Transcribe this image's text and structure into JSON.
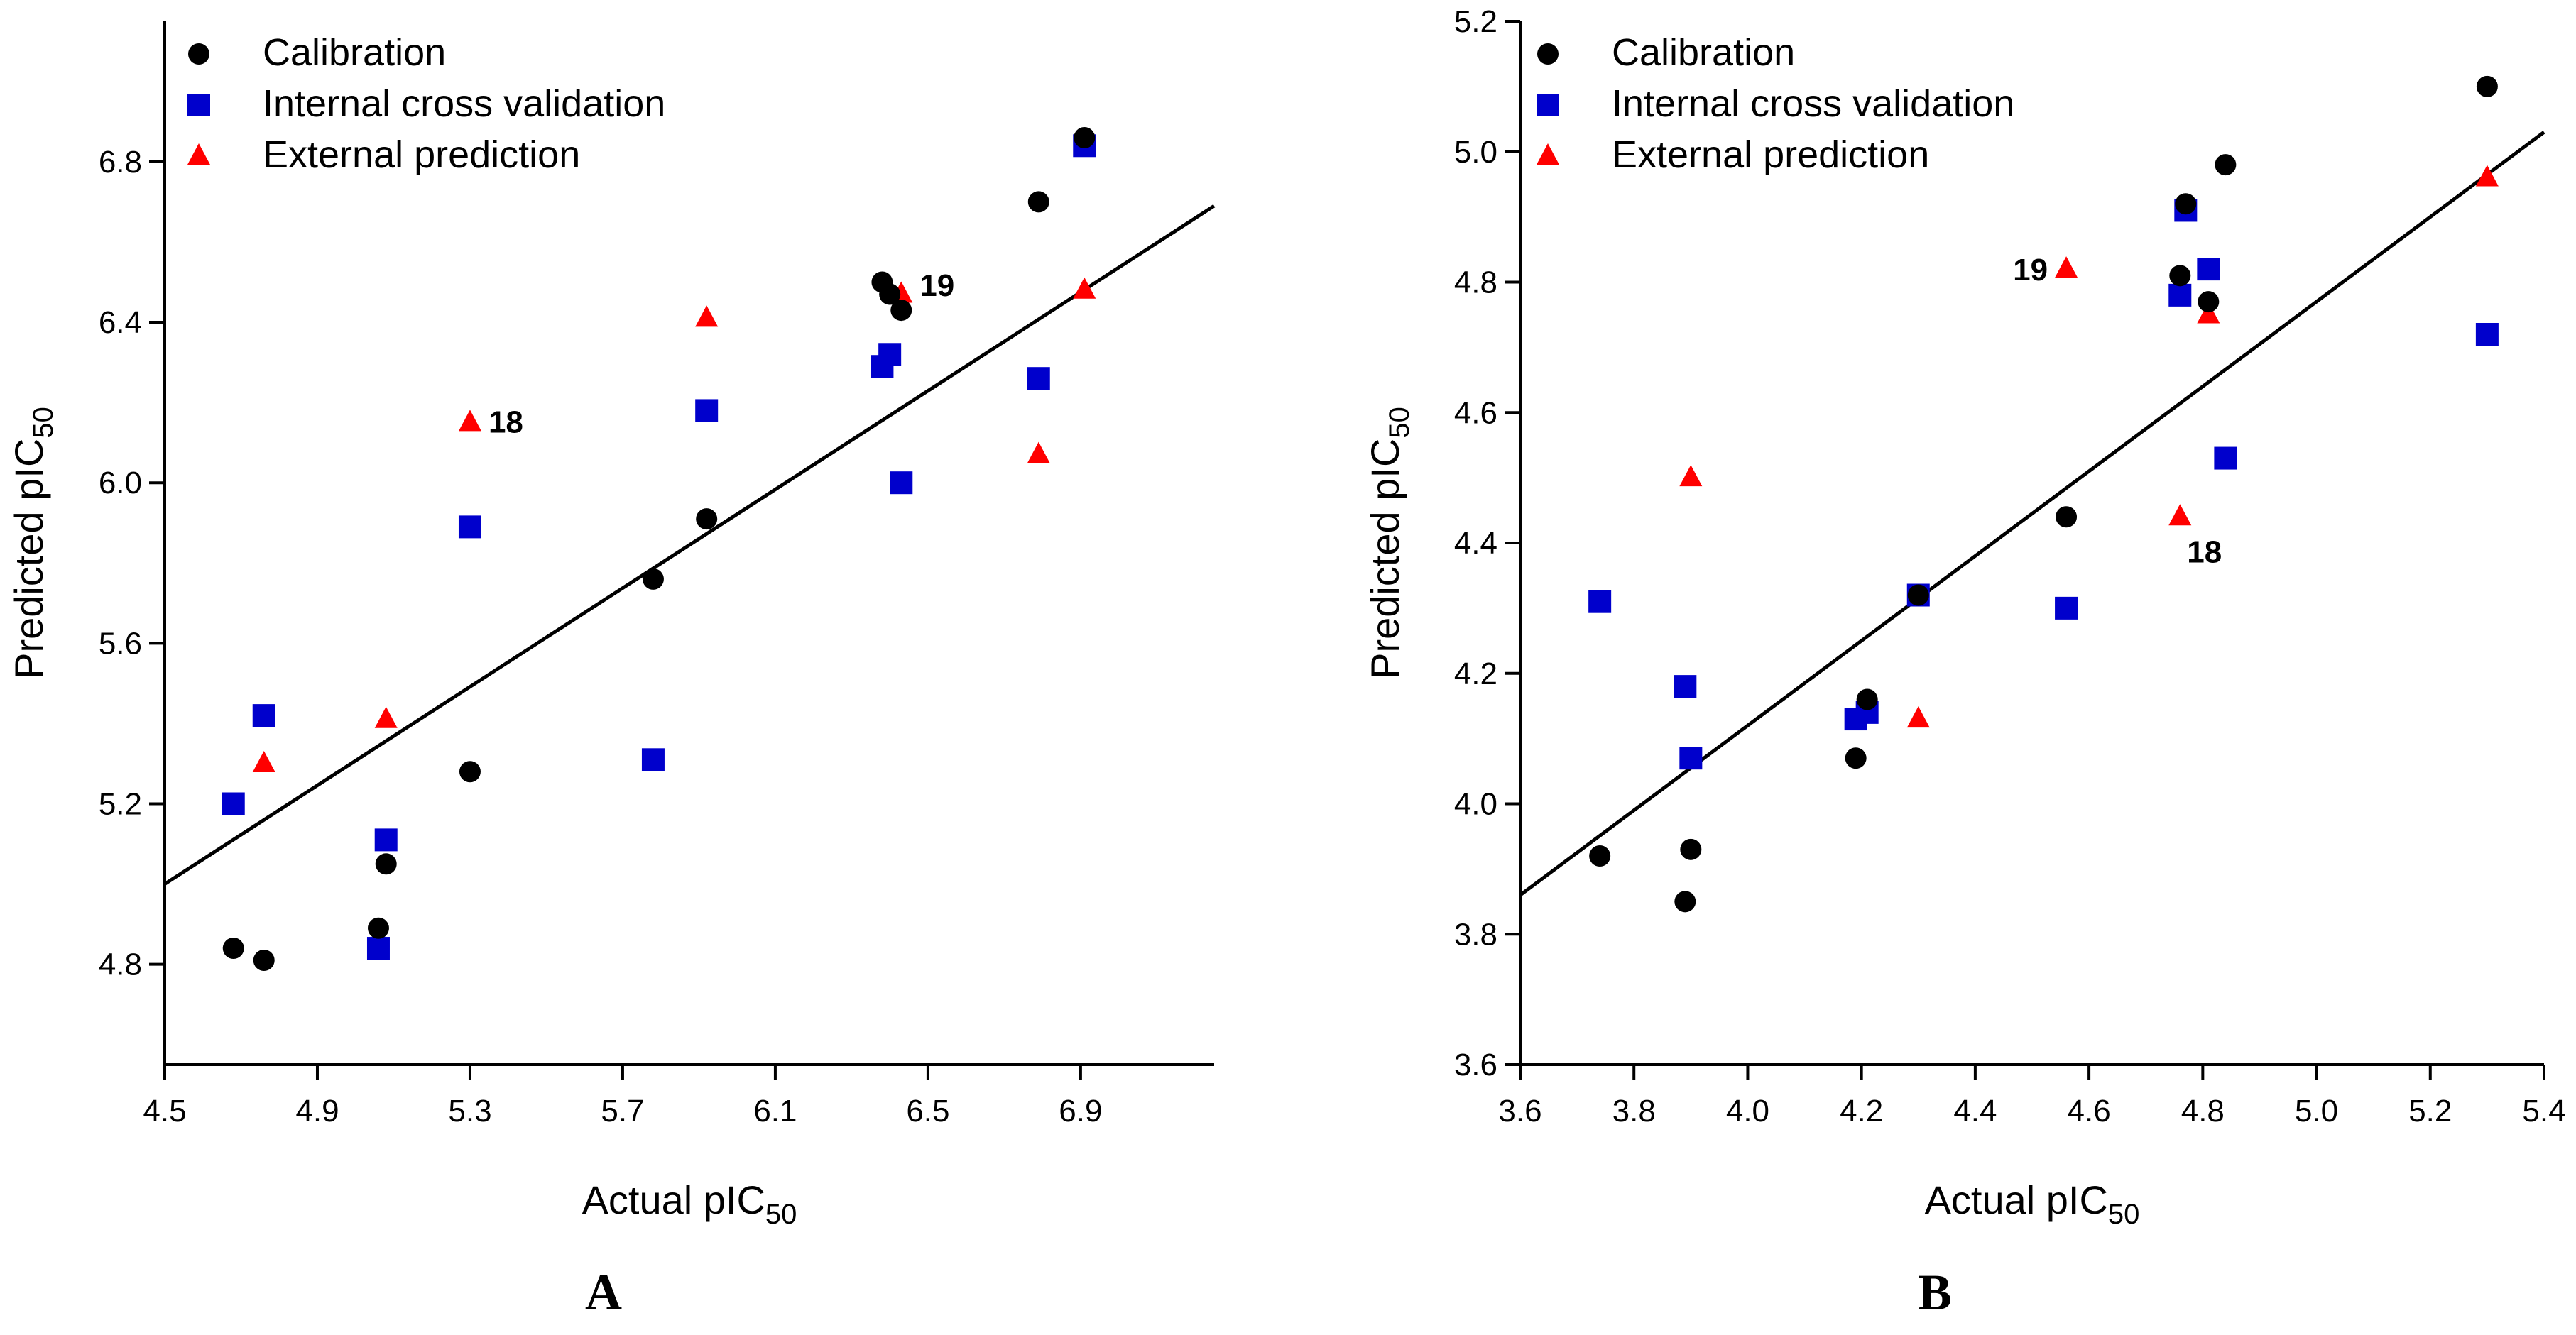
{
  "colors": {
    "calibration": "#000000",
    "internal": "#0000cc",
    "external": "#ff0000",
    "fit_line": "#000000"
  },
  "chart_data": [
    {
      "type": "scatter",
      "panel": "A",
      "xlabel": "Actual pIC",
      "xlabel_sub": "50",
      "ylabel": "Predicted pIC",
      "ylabel_sub": "50",
      "xlim": [
        4.5,
        7.25
      ],
      "ylim": [
        4.55,
        7.15
      ],
      "xticks": [
        4.5,
        4.9,
        5.3,
        5.7,
        6.1,
        6.5,
        6.9
      ],
      "yticks": [
        4.8,
        5.2,
        5.6,
        6.0,
        6.4,
        6.8
      ],
      "x_decimals": 1,
      "y_decimals": 1,
      "legend": [
        "Calibration",
        "Internal cross validation",
        "External prediction"
      ],
      "series": [
        {
          "name": "Calibration",
          "marker": "circle",
          "points": [
            [
              4.68,
              4.84
            ],
            [
              4.76,
              4.81
            ],
            [
              5.06,
              4.89
            ],
            [
              5.08,
              5.05
            ],
            [
              5.3,
              5.28
            ],
            [
              5.78,
              5.76
            ],
            [
              5.92,
              5.91
            ],
            [
              6.38,
              6.5
            ],
            [
              6.4,
              6.47
            ],
            [
              6.43,
              6.43
            ],
            [
              6.79,
              6.7
            ],
            [
              6.91,
              6.86
            ]
          ]
        },
        {
          "name": "Internal cross validation",
          "marker": "square",
          "points": [
            [
              4.68,
              5.2
            ],
            [
              4.76,
              5.42
            ],
            [
              5.06,
              4.84
            ],
            [
              5.08,
              5.11
            ],
            [
              5.3,
              5.89
            ],
            [
              5.78,
              5.31
            ],
            [
              5.92,
              6.18
            ],
            [
              6.38,
              6.29
            ],
            [
              6.4,
              6.32
            ],
            [
              6.43,
              6.0
            ],
            [
              6.79,
              6.26
            ],
            [
              6.91,
              6.84
            ]
          ]
        },
        {
          "name": "External prediction",
          "marker": "triangle",
          "points": [
            [
              4.76,
              5.3
            ],
            [
              5.08,
              5.41
            ],
            [
              5.3,
              6.15
            ],
            [
              5.92,
              6.41
            ],
            [
              6.43,
              6.47
            ],
            [
              6.79,
              6.07
            ],
            [
              6.91,
              6.48
            ]
          ]
        }
      ],
      "fit_line": [
        [
          4.5,
          5.0
        ],
        [
          7.25,
          6.69
        ]
      ],
      "annotations": [
        {
          "text": "18",
          "x": 5.3,
          "y": 6.15,
          "pos": "right"
        },
        {
          "text": "19",
          "x": 6.43,
          "y": 6.49,
          "pos": "right"
        }
      ]
    },
    {
      "type": "scatter",
      "panel": "B",
      "xlabel": "Actual pIC",
      "xlabel_sub": "50",
      "ylabel": "Predicted pIC",
      "ylabel_sub": "50",
      "xlim": [
        3.6,
        5.4
      ],
      "ylim": [
        3.6,
        5.2
      ],
      "xticks": [
        3.6,
        3.8,
        4.0,
        4.2,
        4.4,
        4.6,
        4.8,
        5.0,
        5.2,
        5.4
      ],
      "yticks": [
        3.6,
        3.8,
        4.0,
        4.2,
        4.4,
        4.6,
        4.8,
        5.0,
        5.2
      ],
      "x_decimals": 1,
      "y_decimals": 1,
      "legend": [
        "Calibration",
        "Internal cross validation",
        "External prediction"
      ],
      "series": [
        {
          "name": "Calibration",
          "marker": "circle",
          "points": [
            [
              3.74,
              3.92
            ],
            [
              3.89,
              3.85
            ],
            [
              3.9,
              3.93
            ],
            [
              4.19,
              4.07
            ],
            [
              4.21,
              4.16
            ],
            [
              4.3,
              4.32
            ],
            [
              4.56,
              4.44
            ],
            [
              4.76,
              4.81
            ],
            [
              4.77,
              4.92
            ],
            [
              4.81,
              4.77
            ],
            [
              4.84,
              4.98
            ],
            [
              5.3,
              5.1
            ]
          ]
        },
        {
          "name": "Internal cross validation",
          "marker": "square",
          "points": [
            [
              3.74,
              4.31
            ],
            [
              3.89,
              4.18
            ],
            [
              3.9,
              4.07
            ],
            [
              4.19,
              4.13
            ],
            [
              4.21,
              4.14
            ],
            [
              4.3,
              4.32
            ],
            [
              4.56,
              4.3
            ],
            [
              4.76,
              4.78
            ],
            [
              4.77,
              4.91
            ],
            [
              4.81,
              4.82
            ],
            [
              4.84,
              4.53
            ],
            [
              5.3,
              4.72
            ]
          ]
        },
        {
          "name": "External prediction",
          "marker": "triangle",
          "points": [
            [
              3.9,
              4.5
            ],
            [
              4.3,
              4.13
            ],
            [
              4.56,
              4.82
            ],
            [
              4.76,
              4.44
            ],
            [
              4.81,
              4.75
            ],
            [
              5.3,
              4.96
            ]
          ]
        }
      ],
      "fit_line": [
        [
          3.6,
          3.86
        ],
        [
          5.4,
          5.03
        ]
      ],
      "annotations": [
        {
          "text": "19",
          "x": 4.56,
          "y": 4.82,
          "pos": "left"
        },
        {
          "text": "18",
          "x": 4.76,
          "y": 4.44,
          "pos": "below"
        }
      ]
    }
  ],
  "panel_labels": [
    "A",
    "B"
  ]
}
